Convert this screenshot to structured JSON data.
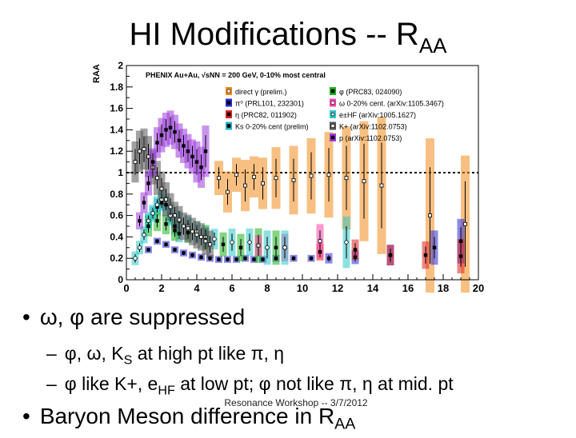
{
  "slide": {
    "title": "HI Modifications -- R",
    "title_sub": "AA",
    "bullets": [
      {
        "text": "ω, φ are suppressed"
      },
      {
        "text_pre": "Baryon Meson difference in R",
        "text_sub": "AA"
      }
    ],
    "subbullets": [
      {
        "pre": "φ, ω, K",
        "sub": "S",
        "post": " at high pt like π, η"
      },
      {
        "pre": "φ like K+, e",
        "sub": "HF",
        "post": " at low pt; φ not like π, η at mid. pt"
      }
    ],
    "footer": "Resonance Workshop -- 3/7/2012"
  },
  "chart_data": {
    "type": "scatter",
    "ylabel": "RAA",
    "header": "PHENIX   Au+Au, √sNN = 200 GeV, 0-10% most central",
    "xlim": [
      0,
      20
    ],
    "ylim": [
      0,
      2
    ],
    "xticks": [
      "0",
      "2",
      "4",
      "6",
      "8",
      "10",
      "12",
      "14",
      "16",
      "18",
      "20"
    ],
    "yticks": [
      "0",
      "0.2",
      "0.4",
      "0.6",
      "0.8",
      "1",
      "1.2",
      "1.4",
      "1.6",
      "1.8",
      "2"
    ],
    "reference_line": 1,
    "legend": [
      {
        "label": "direct γ (prelim.)",
        "color": "#f08c1c",
        "marker": "open-square"
      },
      {
        "label": "π⁰ (PRL101, 232301)",
        "color": "#2a2ad6",
        "marker": "square"
      },
      {
        "label": "η (PRC82, 011902)",
        "color": "#e02020",
        "marker": "square"
      },
      {
        "label": "Ks 0-20% cent (prelim)",
        "color": "#28b4c8",
        "marker": "square"
      },
      {
        "label": "φ (PRC83, 024090)",
        "color": "#1eb41e",
        "marker": "square"
      },
      {
        "label": "ω 0-20% cent. (arXiv:1105.3467)",
        "color": "#ff44aa",
        "marker": "open-square"
      },
      {
        "label": "e±HF (arXiv:1005.1627)",
        "color": "#30c8c8",
        "marker": "circle"
      },
      {
        "label": "K+ (arXiv:1102.0753)",
        "color": "#555555",
        "marker": "open-square"
      },
      {
        "label": "p (arXiv:1102.0753)",
        "color": "#9c3cdc",
        "marker": "square"
      }
    ],
    "series": [
      {
        "name": "direct γ (prelim.)",
        "color": "#f08c1c",
        "x": [
          5.25,
          5.75,
          6.25,
          6.75,
          7.25,
          7.75,
          8.5,
          9.5,
          10.5,
          11.5,
          12.5,
          13.5,
          14.5,
          17.25,
          19.25
        ],
        "y": [
          0.95,
          0.82,
          0.98,
          0.88,
          0.96,
          0.9,
          0.95,
          0.93,
          0.97,
          0.98,
          0.95,
          0.92,
          0.88,
          0.6,
          0.52
        ],
        "err": [
          0.1,
          0.12,
          0.1,
          0.15,
          0.12,
          0.15,
          0.18,
          0.2,
          0.22,
          0.25,
          0.3,
          0.35,
          0.4,
          0.45,
          0.4
        ]
      },
      {
        "name": "π⁰ (PRL101, 232301)",
        "color": "#2a2ad6",
        "x": [
          1.25,
          1.75,
          2.25,
          2.75,
          3.25,
          3.75,
          4.25,
          4.75,
          5.25,
          5.75,
          6.25,
          6.75,
          7.25,
          7.75,
          8.5,
          9.5,
          10.5,
          11.5,
          13.0,
          15.0,
          17.5,
          19.0
        ],
        "y": [
          0.28,
          0.36,
          0.33,
          0.28,
          0.25,
          0.23,
          0.21,
          0.2,
          0.19,
          0.19,
          0.19,
          0.2,
          0.19,
          0.19,
          0.2,
          0.2,
          0.2,
          0.2,
          0.21,
          0.23,
          0.3,
          0.36
        ],
        "err": [
          0.02,
          0.02,
          0.02,
          0.02,
          0.02,
          0.02,
          0.02,
          0.02,
          0.02,
          0.02,
          0.02,
          0.02,
          0.02,
          0.02,
          0.02,
          0.02,
          0.02,
          0.03,
          0.04,
          0.06,
          0.1,
          0.13
        ]
      },
      {
        "name": "η (PRC82, 011902)",
        "color": "#e02020",
        "x": [
          11.0,
          13.0,
          15.0,
          17.0,
          19.0
        ],
        "y": [
          0.26,
          0.28,
          0.23,
          0.23,
          0.22
        ],
        "err": [
          0.05,
          0.06,
          0.06,
          0.08,
          0.1
        ]
      },
      {
        "name": "Ks 0-20% cent (prelim)",
        "color": "#28b4c8",
        "x": [
          1.25,
          1.5,
          1.75,
          2.0,
          2.25,
          2.5,
          2.75,
          3.0
        ],
        "y": [
          0.55,
          0.62,
          0.68,
          0.72,
          0.7,
          0.6,
          0.5,
          0.43
        ],
        "err": [
          0.04,
          0.04,
          0.05,
          0.05,
          0.05,
          0.05,
          0.05,
          0.05
        ]
      },
      {
        "name": "φ (PRC83, 024090)",
        "color": "#1eb41e",
        "x": [
          1.25,
          1.75,
          2.25,
          2.75,
          3.5,
          4.5,
          5.5,
          6.5,
          7.5,
          8.5
        ],
        "y": [
          0.5,
          0.55,
          0.52,
          0.46,
          0.44,
          0.4,
          0.33,
          0.3,
          0.32,
          0.3
        ],
        "err": [
          0.06,
          0.06,
          0.06,
          0.06,
          0.06,
          0.07,
          0.07,
          0.08,
          0.1,
          0.1
        ]
      },
      {
        "name": "ω 0-20% cent. (arXiv:1105.3467)",
        "color": "#ff44aa",
        "x": [
          7.5,
          9.0,
          11.0
        ],
        "y": [
          0.32,
          0.3,
          0.36
        ],
        "err": [
          0.06,
          0.08,
          0.1
        ]
      },
      {
        "name": "e±HF (arXiv:1005.1627)",
        "color": "#30c8c8",
        "x": [
          0.5,
          0.75,
          1.0,
          1.25,
          1.5,
          1.75,
          2.0,
          2.5,
          3.0,
          3.5,
          4.0,
          4.5,
          5.0,
          6.0,
          7.0,
          8.0,
          9.0,
          12.5
        ],
        "y": [
          0.2,
          0.3,
          0.42,
          0.55,
          0.62,
          0.7,
          0.75,
          0.6,
          0.55,
          0.5,
          0.45,
          0.4,
          0.38,
          0.35,
          0.35,
          0.3,
          0.3,
          0.35
        ],
        "err": [
          0.04,
          0.04,
          0.05,
          0.05,
          0.05,
          0.05,
          0.06,
          0.06,
          0.06,
          0.06,
          0.06,
          0.06,
          0.06,
          0.08,
          0.08,
          0.1,
          0.1,
          0.15
        ]
      },
      {
        "name": "K+ (arXiv:1102.0753)",
        "color": "#555555",
        "x": [
          0.5,
          0.75,
          1.0,
          1.25,
          1.5,
          1.75,
          2.0,
          2.25,
          2.5,
          2.75,
          3.0,
          3.25,
          3.5,
          3.75,
          4.0,
          4.25,
          4.5,
          4.75
        ],
        "y": [
          1.1,
          1.2,
          1.22,
          1.15,
          1.05,
          0.95,
          0.85,
          0.75,
          0.68,
          0.6,
          0.56,
          0.5,
          0.48,
          0.45,
          0.42,
          0.4,
          0.36,
          0.33
        ],
        "err": [
          0.12,
          0.12,
          0.12,
          0.12,
          0.1,
          0.1,
          0.1,
          0.1,
          0.08,
          0.08,
          0.08,
          0.08,
          0.08,
          0.08,
          0.08,
          0.08,
          0.08,
          0.08
        ]
      },
      {
        "name": "p (arXiv:1102.0753)",
        "color": "#9c3cdc",
        "x": [
          0.75,
          1.0,
          1.25,
          1.5,
          1.75,
          2.0,
          2.25,
          2.5,
          2.75,
          3.0,
          3.25,
          3.5,
          3.75,
          4.0,
          4.25,
          4.5
        ],
        "y": [
          0.55,
          0.72,
          0.9,
          1.1,
          1.28,
          1.35,
          1.4,
          1.42,
          1.38,
          1.3,
          1.25,
          1.2,
          1.15,
          1.1,
          1.05,
          1.2
        ],
        "err": [
          0.05,
          0.06,
          0.07,
          0.08,
          0.09,
          0.1,
          0.1,
          0.1,
          0.1,
          0.1,
          0.1,
          0.1,
          0.1,
          0.12,
          0.12,
          0.15
        ]
      }
    ]
  }
}
